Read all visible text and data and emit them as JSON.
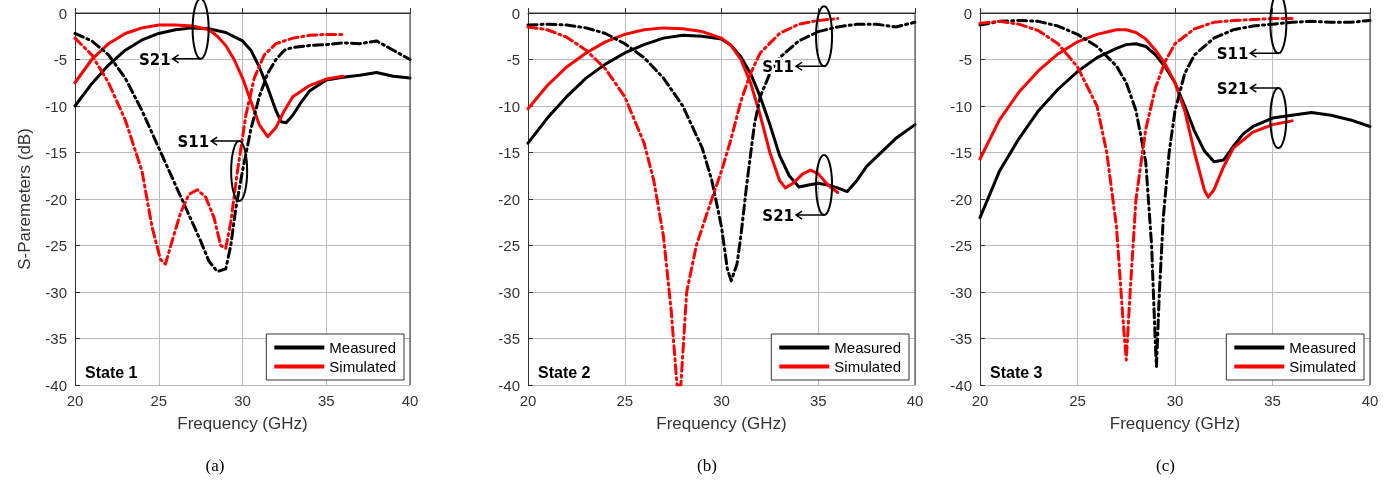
{
  "chart_data": [
    {
      "type": "line",
      "title": "(a)",
      "xlabel": "Frequency (GHz)",
      "ylabel": "S-Paremeters (dB)",
      "xlim": [
        20,
        40
      ],
      "xticks": [
        20,
        25,
        30,
        35,
        40
      ],
      "ylim": [
        -40,
        0
      ],
      "yticks": [
        -40,
        -35,
        -30,
        -25,
        -20,
        -15,
        -10,
        -5,
        0
      ],
      "grid": true,
      "legend": "bottom right",
      "marker": "none",
      "annotations": [
        "State 1",
        {
          "text": "S21",
          "x": 27.5,
          "y": -1.7
        },
        {
          "text": "S11",
          "x": 29.8,
          "y": -17
        }
      ],
      "series": [
        {
          "name": "Measured",
          "color": "#000000",
          "line_style": "solid",
          "x": [
            20,
            21,
            22,
            23,
            24,
            25,
            26,
            27,
            28,
            29,
            30,
            30.5,
            31,
            31.5,
            32,
            32.3,
            32.6,
            33,
            33.5,
            34,
            35,
            36,
            37,
            38,
            39,
            40
          ],
          "values": [
            -10,
            -7.6,
            -5.6,
            -4,
            -2.9,
            -2.2,
            -1.8,
            -1.6,
            -1.7,
            -2.1,
            -3,
            -4,
            -5.8,
            -8,
            -10.5,
            -11.7,
            -11.8,
            -11,
            -9.6,
            -8.4,
            -7.2,
            -6.9,
            -6.7,
            -6.4,
            -6.8,
            -7
          ]
        },
        {
          "name": "Simulated",
          "color": "#ff0000",
          "line_style": "solid",
          "x": [
            20,
            21,
            22,
            23,
            24,
            25,
            26,
            27,
            28,
            28.5,
            29,
            29.5,
            30,
            30.5,
            31,
            31.5,
            32,
            32.5,
            33,
            34,
            35,
            36
          ],
          "values": [
            -7.5,
            -5,
            -3.3,
            -2.2,
            -1.6,
            -1.3,
            -1.3,
            -1.4,
            -1.8,
            -2.5,
            -3.5,
            -5,
            -7,
            -9.5,
            -12,
            -13.3,
            -12.3,
            -10.5,
            -9,
            -7.8,
            -7.1,
            -6.8
          ]
        },
        {
          "color": "#000000",
          "line_style": "dashed",
          "x": [
            20,
            21,
            22,
            23,
            24,
            25,
            26,
            26.5,
            27,
            27.5,
            28,
            28.5,
            29,
            29.3,
            29.6,
            30,
            30.5,
            31,
            31.5,
            32,
            32.5,
            33,
            34,
            35,
            36,
            37,
            38,
            39,
            40
          ],
          "values": [
            -2.2,
            -3,
            -4.5,
            -7,
            -10.5,
            -14.5,
            -18.5,
            -20.5,
            -22.5,
            -24.5,
            -26.7,
            -27.8,
            -27.5,
            -25,
            -21,
            -17,
            -12.5,
            -9,
            -6.5,
            -5,
            -4,
            -3.7,
            -3.5,
            -3.4,
            -3.2,
            -3.3,
            -3,
            -4,
            -5
          ]
        },
        {
          "color": "#ff0000",
          "line_style": "dashed",
          "x": [
            20,
            21,
            22,
            23,
            24,
            24.6,
            25.1,
            25.4,
            25.8,
            26.3,
            26.8,
            27.3,
            27.8,
            28.3,
            28.7,
            29,
            29.3,
            29.7,
            30.2,
            30.7,
            31.3,
            32,
            33,
            34,
            35,
            36
          ],
          "values": [
            -2.7,
            -4.5,
            -7.5,
            -11.5,
            -17,
            -23,
            -26.5,
            -27,
            -24.5,
            -21.5,
            -19.5,
            -19,
            -19.8,
            -22,
            -25,
            -25.3,
            -22.5,
            -17,
            -11,
            -7,
            -4.5,
            -3.3,
            -2.7,
            -2.4,
            -2.3,
            -2.3
          ]
        }
      ]
    },
    {
      "type": "line",
      "title": "(b)",
      "xlabel": "Frequency (GHz)",
      "xlim": [
        20,
        40
      ],
      "xticks": [
        20,
        25,
        30,
        35,
        40
      ],
      "ylim": [
        -40,
        0
      ],
      "yticks": [
        -40,
        -35,
        -30,
        -25,
        -20,
        -15,
        -10,
        -5,
        0
      ],
      "grid": true,
      "legend": "bottom right",
      "marker": "none",
      "annotations": [
        "State 2",
        {
          "text": "S11",
          "x": 35.3,
          "y": -2.5
        },
        {
          "text": "S21",
          "x": 35.3,
          "y": -18.5
        }
      ],
      "series": [
        {
          "name": "Measured",
          "color": "#000000",
          "line_style": "solid",
          "x": [
            20,
            21,
            22,
            23,
            24,
            25,
            26,
            27,
            28,
            29,
            30,
            30.5,
            31,
            31.5,
            32,
            32.5,
            33,
            33.5,
            34,
            34.5,
            35,
            35.5,
            36,
            36.5,
            37,
            37.5,
            38,
            38.5,
            39,
            40
          ],
          "values": [
            -14,
            -11.3,
            -9,
            -7,
            -5.5,
            -4.3,
            -3.4,
            -2.7,
            -2.4,
            -2.5,
            -2.8,
            -3.5,
            -4.7,
            -6.5,
            -9,
            -12,
            -15.3,
            -17.5,
            -18.7,
            -18.5,
            -18.3,
            -18.5,
            -18.8,
            -19.2,
            -18,
            -16.5,
            -15.5,
            -14.5,
            -13.5,
            -12
          ]
        },
        {
          "name": "Simulated",
          "color": "#ff0000",
          "line_style": "solid",
          "x": [
            20,
            21,
            22,
            23,
            24,
            25,
            26,
            27,
            28,
            29,
            30,
            30.5,
            31,
            31.5,
            32,
            32.5,
            33,
            33.3,
            33.7,
            34.2,
            34.6,
            35,
            35.5,
            36
          ],
          "values": [
            -10.3,
            -7.8,
            -5.8,
            -4.3,
            -3.1,
            -2.3,
            -1.8,
            -1.6,
            -1.7,
            -2,
            -2.7,
            -3.5,
            -5,
            -7.5,
            -11,
            -15,
            -18,
            -18.8,
            -18.3,
            -17.3,
            -16.9,
            -17.3,
            -18.5,
            -19.3
          ]
        },
        {
          "color": "#000000",
          "line_style": "dashed",
          "x": [
            20,
            21,
            22,
            23,
            24,
            25,
            26,
            27,
            28,
            29,
            29.5,
            30,
            30.3,
            30.5,
            30.8,
            31,
            31.3,
            31.7,
            32,
            32.5,
            33,
            34,
            35,
            36,
            37,
            38,
            39,
            40
          ],
          "values": [
            -1.3,
            -1.2,
            -1.3,
            -1.6,
            -2.2,
            -3.3,
            -4.8,
            -7,
            -10,
            -14.5,
            -18,
            -23,
            -27.5,
            -28.8,
            -27,
            -24,
            -18.5,
            -12,
            -9,
            -6.5,
            -4.8,
            -3,
            -2,
            -1.5,
            -1.2,
            -1.2,
            -1.5,
            -1
          ]
        },
        {
          "color": "#ff0000",
          "line_style": "dashed",
          "x": [
            20,
            21,
            22,
            23,
            24,
            25,
            26,
            26.5,
            27,
            27.4,
            27.7,
            27.9,
            28.2,
            28.7,
            29.5,
            30,
            30.5,
            31,
            31.5,
            32,
            33,
            34,
            35,
            36
          ],
          "values": [
            -1.5,
            -1.8,
            -2.6,
            -4,
            -6,
            -9,
            -14,
            -18,
            -24,
            -32,
            -40,
            -40,
            -30,
            -25,
            -20,
            -17,
            -13.5,
            -9.5,
            -6.5,
            -4.3,
            -2.2,
            -1.2,
            -0.8,
            -0.6
          ]
        }
      ]
    },
    {
      "type": "line",
      "title": "(c)",
      "xlabel": "Frequency (GHz)",
      "xlim": [
        20,
        40
      ],
      "xticks": [
        20,
        25,
        30,
        35,
        40
      ],
      "ylim": [
        -40,
        0
      ],
      "yticks": [
        -40,
        -35,
        -30,
        -25,
        -20,
        -15,
        -10,
        -5,
        0
      ],
      "grid": true,
      "legend": "bottom right",
      "marker": "none",
      "annotations": [
        "State 3",
        {
          "text": "S11",
          "x": 35.3,
          "y": -1.1
        },
        {
          "text": "S21",
          "x": 35.3,
          "y": -11.3
        }
      ],
      "series": [
        {
          "name": "Measured",
          "color": "#000000",
          "line_style": "solid",
          "x": [
            20,
            21,
            22,
            23,
            24,
            25,
            26,
            27,
            27.5,
            28,
            28.5,
            29,
            29.5,
            30,
            30.5,
            31,
            31.5,
            32,
            32.5,
            33,
            33.5,
            34,
            35,
            36,
            37,
            38,
            39,
            40
          ],
          "values": [
            -22,
            -17,
            -13.5,
            -10.5,
            -8.2,
            -6.3,
            -4.8,
            -3.8,
            -3.4,
            -3.3,
            -3.6,
            -4.5,
            -5.8,
            -7.5,
            -10,
            -12.7,
            -14.8,
            -16,
            -15.8,
            -14.3,
            -13,
            -12.2,
            -11.3,
            -11,
            -10.7,
            -11,
            -11.5,
            -12.2
          ]
        },
        {
          "name": "Simulated",
          "color": "#ff0000",
          "line_style": "solid",
          "x": [
            20,
            21,
            22,
            23,
            24,
            25,
            26,
            27,
            27.5,
            28,
            28.5,
            29,
            29.5,
            30,
            30.5,
            31,
            31.5,
            31.7,
            32,
            32.5,
            33,
            34,
            35,
            36
          ],
          "values": [
            -15.7,
            -11.5,
            -8.5,
            -6.2,
            -4.4,
            -3.1,
            -2.3,
            -1.8,
            -1.8,
            -2.1,
            -2.8,
            -4,
            -5.5,
            -7.5,
            -10.5,
            -15,
            -19,
            -19.8,
            -19,
            -16.5,
            -14.5,
            -12.8,
            -12,
            -11.6
          ]
        },
        {
          "color": "#000000",
          "line_style": "dashed",
          "x": [
            20,
            21,
            22,
            23,
            24,
            25,
            26,
            27,
            27.5,
            28,
            28.5,
            28.8,
            29,
            29.05,
            29.2,
            29.4,
            29.7,
            30,
            30.5,
            31,
            32,
            33,
            34,
            35,
            36,
            37,
            38,
            39,
            40
          ],
          "values": [
            -1.3,
            -0.9,
            -0.8,
            -0.9,
            -1.4,
            -2.3,
            -3.6,
            -5.7,
            -7.5,
            -10.5,
            -16,
            -25,
            -36,
            -38,
            -30,
            -22,
            -15,
            -10.5,
            -6.5,
            -4.5,
            -2.7,
            -1.8,
            -1.4,
            -1.2,
            -1,
            -0.9,
            -1,
            -1,
            -0.8
          ]
        },
        {
          "color": "#ff0000",
          "line_style": "dashed",
          "x": [
            20,
            21,
            22,
            23,
            24,
            25,
            26,
            26.5,
            27,
            27.3,
            27.5,
            27.7,
            28,
            28.5,
            29,
            29.5,
            30,
            31,
            32,
            33,
            34,
            35,
            36
          ],
          "values": [
            -1.1,
            -0.9,
            -1.2,
            -1.9,
            -3.3,
            -5.8,
            -10,
            -15,
            -23,
            -32,
            -37.3,
            -30,
            -20,
            -12.5,
            -8,
            -5.2,
            -3.3,
            -1.7,
            -1,
            -0.8,
            -0.7,
            -0.6,
            -0.6
          ]
        }
      ]
    }
  ]
}
